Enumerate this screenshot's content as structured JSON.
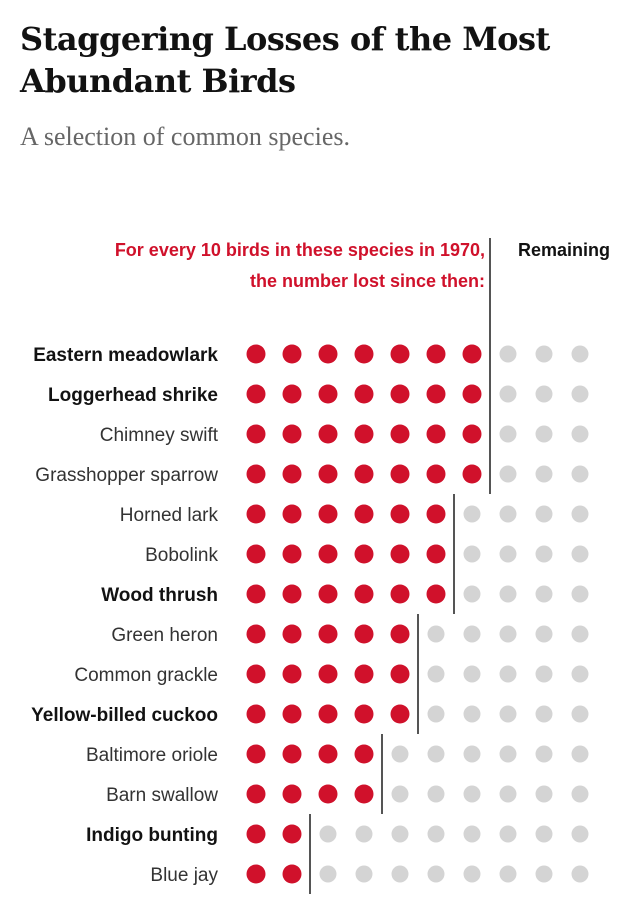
{
  "title": "Staggering Losses of the Most Abundant Birds",
  "subtitle": "A selection of common species.",
  "chart_data": {
    "type": "dot-matrix",
    "header_lost_line1": "For every 10 birds in these species in 1970,",
    "header_lost_line2": "the number lost since then:",
    "header_remaining": "Remaining",
    "total_per_row": 10,
    "colors": {
      "lost": "#d0112b",
      "remaining": "#d4d4d4",
      "divider": "#555555"
    },
    "rows": [
      {
        "species": "Eastern meadowlark",
        "lost": 7,
        "bold": true
      },
      {
        "species": "Loggerhead shrike",
        "lost": 7,
        "bold": true
      },
      {
        "species": "Chimney swift",
        "lost": 7,
        "bold": false
      },
      {
        "species": "Grasshopper sparrow",
        "lost": 7,
        "bold": false
      },
      {
        "species": "Horned lark",
        "lost": 6,
        "bold": false
      },
      {
        "species": "Bobolink",
        "lost": 6,
        "bold": false
      },
      {
        "species": "Wood thrush",
        "lost": 6,
        "bold": true
      },
      {
        "species": "Green heron",
        "lost": 5,
        "bold": false
      },
      {
        "species": "Common grackle",
        "lost": 5,
        "bold": false
      },
      {
        "species": "Yellow-billed cuckoo",
        "lost": 5,
        "bold": true
      },
      {
        "species": "Baltimore oriole",
        "lost": 4,
        "bold": false
      },
      {
        "species": "Barn swallow",
        "lost": 4,
        "bold": false
      },
      {
        "species": "Indigo bunting",
        "lost": 2,
        "bold": true
      },
      {
        "species": "Blue jay",
        "lost": 2,
        "bold": false
      }
    ]
  }
}
